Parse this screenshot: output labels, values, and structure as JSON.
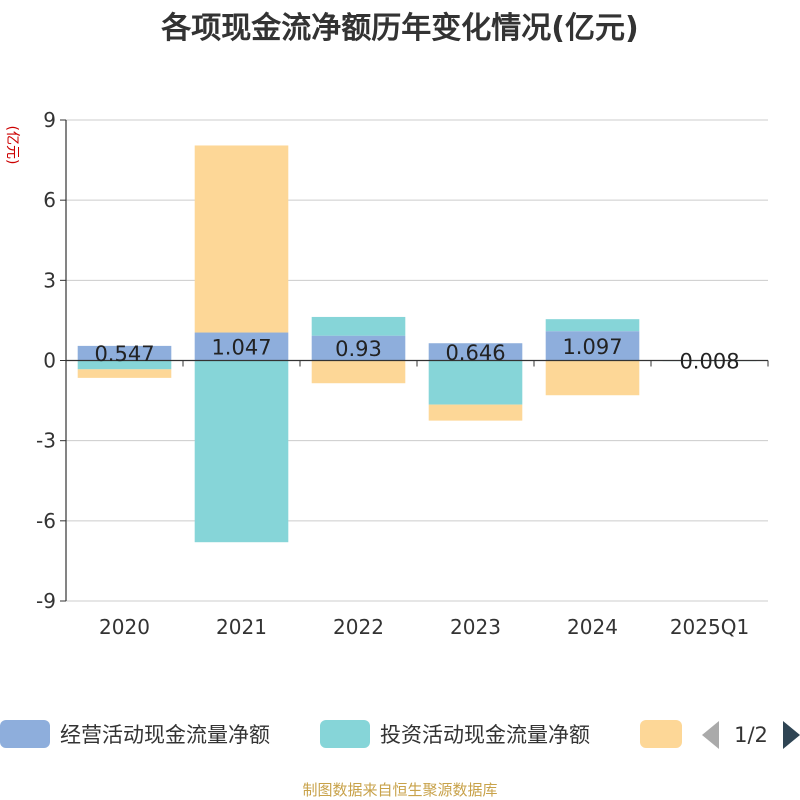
{
  "chart_data": {
    "type": "bar",
    "stacked": true,
    "title": "各项现金流净额历年变化情况(亿元)",
    "ylabel": "(亿元)",
    "xlabel": "",
    "ylim": [
      -9,
      9
    ],
    "yticks": [
      9,
      6,
      3,
      0,
      -3,
      -6,
      -9
    ],
    "yticks_text": [
      "9",
      "6",
      "3",
      "0",
      "-3",
      "-6",
      "-9"
    ],
    "grid": true,
    "legend_position": "bottom",
    "categories": [
      "2020",
      "2021",
      "2022",
      "2023",
      "2024",
      "2025Q1"
    ],
    "series": [
      {
        "name": "经营活动现金流量净额",
        "color": "#8eaedc",
        "values": [
          0.547,
          1.047,
          0.93,
          0.646,
          1.097,
          0.008
        ],
        "labels": [
          "0.547",
          "1.047",
          "0.93",
          "0.646",
          "1.097",
          "0.008"
        ]
      },
      {
        "name": "投资活动现金流量净额",
        "color": "#86d5d8",
        "values": [
          -0.33,
          -6.8,
          0.7,
          -1.65,
          0.45,
          -0.02
        ]
      },
      {
        "name": "",
        "color": "#fdd797",
        "values": [
          -0.32,
          7.0,
          -0.85,
          -0.6,
          -1.3,
          0.0
        ]
      }
    ]
  },
  "legend": {
    "page": "1/2"
  },
  "source": "制图数据来自恒生聚源数据库",
  "colors": {
    "axis": "#333333",
    "grid": "#cccccc",
    "pager_inactive": "#aaaaaa",
    "pager_active": "#2f4554"
  }
}
